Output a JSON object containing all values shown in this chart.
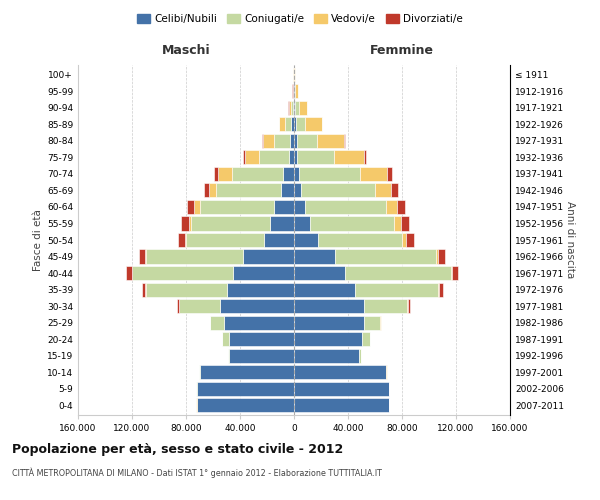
{
  "age_groups": [
    "0-4",
    "5-9",
    "10-14",
    "15-19",
    "20-24",
    "25-29",
    "30-34",
    "35-39",
    "40-44",
    "45-49",
    "50-54",
    "55-59",
    "60-64",
    "65-69",
    "70-74",
    "75-79",
    "80-84",
    "85-89",
    "90-94",
    "95-99",
    "100+"
  ],
  "birth_years": [
    "2007-2011",
    "2002-2006",
    "1997-2001",
    "1992-1996",
    "1987-1991",
    "1982-1986",
    "1977-1981",
    "1972-1976",
    "1967-1971",
    "1962-1966",
    "1957-1961",
    "1952-1956",
    "1947-1951",
    "1942-1946",
    "1937-1941",
    "1932-1936",
    "1927-1931",
    "1922-1926",
    "1917-1921",
    "1912-1916",
    "≤ 1911"
  ],
  "male_celibi": [
    72000,
    72000,
    70000,
    48000,
    48000,
    52000,
    55000,
    50000,
    45000,
    38000,
    22000,
    18000,
    15000,
    10000,
    8000,
    4000,
    3000,
    2000,
    1000,
    400,
    200
  ],
  "male_coniugati": [
    200,
    300,
    500,
    1000,
    5000,
    10000,
    30000,
    60000,
    75000,
    72000,
    58000,
    58000,
    55000,
    48000,
    38000,
    22000,
    12000,
    5000,
    1500,
    300,
    100
  ],
  "male_vedovi": [
    50,
    50,
    50,
    50,
    50,
    50,
    100,
    200,
    300,
    500,
    1000,
    2000,
    4000,
    5000,
    10000,
    10000,
    8000,
    4000,
    1500,
    400,
    100
  ],
  "male_divorziati": [
    50,
    50,
    50,
    100,
    200,
    500,
    1500,
    2500,
    4000,
    4500,
    5000,
    5500,
    5000,
    4000,
    3000,
    1500,
    800,
    400,
    200,
    100,
    50
  ],
  "female_celibi": [
    70000,
    70000,
    68000,
    48000,
    50000,
    52000,
    52000,
    45000,
    38000,
    30000,
    18000,
    12000,
    8000,
    5000,
    4000,
    2500,
    2000,
    1500,
    900,
    400,
    200
  ],
  "female_coniugati": [
    200,
    300,
    500,
    1500,
    6000,
    12000,
    32000,
    62000,
    78000,
    75000,
    62000,
    62000,
    60000,
    55000,
    45000,
    27000,
    15000,
    7000,
    2500,
    500,
    100
  ],
  "female_vedovi": [
    50,
    50,
    50,
    50,
    50,
    100,
    200,
    400,
    800,
    1500,
    3000,
    5000,
    8000,
    12000,
    20000,
    22000,
    20000,
    12000,
    6000,
    2000,
    500
  ],
  "female_divorziati": [
    50,
    50,
    50,
    100,
    200,
    600,
    1800,
    3000,
    5000,
    5500,
    6000,
    6500,
    6000,
    5000,
    3500,
    1500,
    1000,
    600,
    300,
    150,
    50
  ],
  "colors": {
    "celibi": "#4472a8",
    "coniugati": "#c5d9a2",
    "vedovi": "#f5c96a",
    "divorziati": "#c0392b"
  },
  "xlim": 160000,
  "title": "Popolazione per età, sesso e stato civile - 2012",
  "subtitle": "CITTÀ METROPOLITANA DI MILANO - Dati ISTAT 1° gennaio 2012 - Elaborazione TUTTITALIA.IT",
  "ylabel": "Fasce di età",
  "ylabel_right": "Anni di nascita",
  "label_maschi": "Maschi",
  "label_femmine": "Femmine",
  "legend_labels": [
    "Celibi/Nubili",
    "Coniugati/e",
    "Vedovi/e",
    "Divorziati/e"
  ],
  "background_color": "#ffffff"
}
